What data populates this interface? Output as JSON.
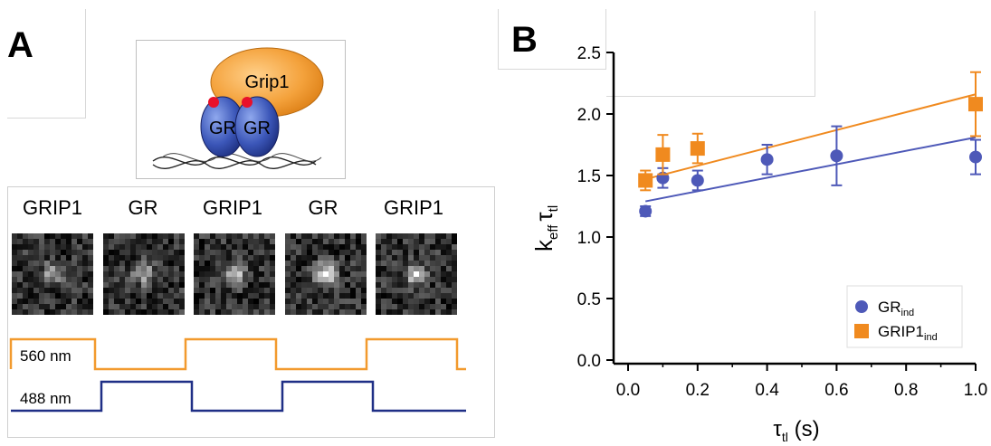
{
  "panel_a": {
    "letter": "A",
    "cartoon": {
      "big_label": "Grip1",
      "left_label": "GR",
      "right_label": "GR"
    },
    "frame_labels": [
      "GRIP1",
      "GR",
      "GRIP1",
      "GR",
      "GRIP1"
    ],
    "traces": [
      {
        "label": "560 nm",
        "color": "#f29a2e",
        "pattern": [
          1,
          0,
          1,
          0,
          1
        ]
      },
      {
        "label": "488 nm",
        "color": "#1f2f86",
        "pattern": [
          0,
          1,
          0,
          1,
          0
        ]
      }
    ]
  },
  "panel_b": {
    "letter": "B"
  },
  "colors": {
    "gr": "#4e59b8",
    "grip1": "#f08a1f",
    "axis": "#000000"
  },
  "chart_data": {
    "type": "scatter",
    "xlabel_main": "τ",
    "xlabel_sub": "tl",
    "xlabel_unit": " (s)",
    "ylabel_k": "k",
    "ylabel_k_sub": "eff",
    "ylabel_tau": "τ",
    "ylabel_tau_sub": "tl",
    "xlim": [
      0,
      1.0
    ],
    "ylim": [
      0,
      2.5
    ],
    "xticks": [
      0.0,
      0.2,
      0.4,
      0.6,
      0.8,
      1.0
    ],
    "xtick_labels": [
      "0.0",
      "0.2",
      "0.4",
      "0.6",
      "0.8",
      "1.0"
    ],
    "yticks": [
      0.0,
      0.5,
      1.0,
      1.5,
      2.0,
      2.5
    ],
    "ytick_labels": [
      "0.0",
      "0.5",
      "1.0",
      "1.5",
      "2.0",
      "2.5"
    ],
    "legend_position": "bottom-right",
    "series": [
      {
        "name": "GR",
        "name_sub": "ind",
        "marker": "circle",
        "color": "#4e59b8",
        "x": [
          0.05,
          0.1,
          0.2,
          0.4,
          0.6,
          1.0
        ],
        "y": [
          1.21,
          1.48,
          1.46,
          1.63,
          1.66,
          1.65
        ],
        "err": [
          0.04,
          0.08,
          0.08,
          0.12,
          0.24,
          0.14
        ],
        "fit": {
          "x": [
            0.05,
            1.0
          ],
          "y": [
            1.29,
            1.81
          ]
        }
      },
      {
        "name": "GRIP1",
        "name_sub": "ind",
        "marker": "square",
        "color": "#f08a1f",
        "x": [
          0.05,
          0.1,
          0.2,
          1.0
        ],
        "y": [
          1.46,
          1.67,
          1.72,
          2.08
        ],
        "err": [
          0.08,
          0.16,
          0.12,
          0.26
        ],
        "fit": {
          "x": [
            0.05,
            1.0
          ],
          "y": [
            1.47,
            2.16
          ]
        }
      }
    ]
  }
}
